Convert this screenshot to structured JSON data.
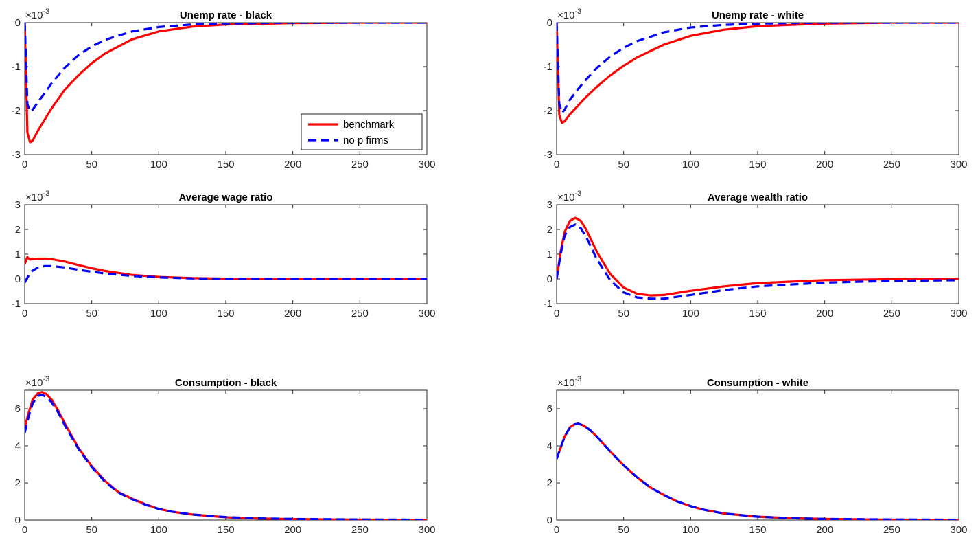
{
  "chart_data": [
    {
      "type": "line",
      "title": "Unemp rate - black",
      "exponent_base": "×10",
      "exponent_power": "-3",
      "xlim": [
        0,
        300
      ],
      "ylim": [
        -3,
        0
      ],
      "xticks": [
        0,
        50,
        100,
        150,
        200,
        250,
        300
      ],
      "yticks": [
        -3,
        -2,
        -1,
        0
      ],
      "legend": {
        "location": "bottom-right",
        "entries": [
          "benchmark",
          "no p firms"
        ]
      },
      "series": [
        {
          "name": "benchmark",
          "color": "#ff0000",
          "style": "solid",
          "x": [
            0,
            2,
            4,
            6,
            10,
            15,
            20,
            30,
            40,
            50,
            60,
            80,
            100,
            125,
            150,
            200,
            250,
            300
          ],
          "y": [
            0,
            -2.5,
            -2.72,
            -2.68,
            -2.45,
            -2.2,
            -1.95,
            -1.52,
            -1.2,
            -0.92,
            -0.7,
            -0.38,
            -0.2,
            -0.09,
            -0.04,
            -0.01,
            0,
            0
          ]
        },
        {
          "name": "no p firms",
          "color": "#0000ff",
          "style": "dashed",
          "x": [
            0,
            2,
            4,
            6,
            10,
            15,
            20,
            30,
            40,
            50,
            60,
            80,
            100,
            125,
            150,
            200,
            250,
            300
          ],
          "y": [
            0,
            -1.85,
            -2.02,
            -1.98,
            -1.8,
            -1.6,
            -1.38,
            -1.02,
            -0.74,
            -0.54,
            -0.39,
            -0.2,
            -0.1,
            -0.04,
            -0.02,
            0,
            0,
            0
          ]
        }
      ]
    },
    {
      "type": "line",
      "title": "Unemp rate - white",
      "exponent_base": "×10",
      "exponent_power": "-3",
      "xlim": [
        0,
        300
      ],
      "ylim": [
        -3,
        0
      ],
      "xticks": [
        0,
        50,
        100,
        150,
        200,
        250,
        300
      ],
      "yticks": [
        -3,
        -2,
        -1,
        0
      ],
      "series": [
        {
          "name": "benchmark",
          "color": "#ff0000",
          "style": "solid",
          "x": [
            0,
            2,
            4,
            6,
            10,
            15,
            20,
            30,
            40,
            50,
            60,
            80,
            100,
            125,
            150,
            200,
            250,
            300
          ],
          "y": [
            0,
            -2.1,
            -2.28,
            -2.24,
            -2.08,
            -1.92,
            -1.75,
            -1.46,
            -1.2,
            -0.98,
            -0.79,
            -0.5,
            -0.3,
            -0.16,
            -0.08,
            -0.02,
            0,
            0
          ]
        },
        {
          "name": "no p firms",
          "color": "#0000ff",
          "style": "dashed",
          "x": [
            0,
            2,
            4,
            6,
            10,
            15,
            20,
            30,
            40,
            50,
            60,
            80,
            100,
            125,
            150,
            200,
            250,
            300
          ],
          "y": [
            0,
            -1.85,
            -2.05,
            -1.98,
            -1.75,
            -1.55,
            -1.36,
            -1.03,
            -0.77,
            -0.57,
            -0.42,
            -0.22,
            -0.11,
            -0.05,
            -0.02,
            0,
            0,
            0
          ]
        }
      ]
    },
    {
      "type": "line",
      "title": "Average wage ratio",
      "exponent_base": "×10",
      "exponent_power": "-3",
      "xlim": [
        0,
        300
      ],
      "ylim": [
        -1,
        3
      ],
      "xticks": [
        0,
        50,
        100,
        150,
        200,
        250,
        300
      ],
      "yticks": [
        -1,
        0,
        1,
        2,
        3
      ],
      "series": [
        {
          "name": "benchmark",
          "color": "#ff0000",
          "style": "solid",
          "x": [
            0,
            2,
            4,
            6,
            8,
            10,
            15,
            20,
            30,
            40,
            50,
            60,
            80,
            100,
            125,
            150,
            200,
            250,
            300
          ],
          "y": [
            0.6,
            0.88,
            0.78,
            0.82,
            0.8,
            0.82,
            0.82,
            0.8,
            0.7,
            0.56,
            0.43,
            0.32,
            0.16,
            0.08,
            0.03,
            0.01,
            0,
            0,
            0
          ]
        },
        {
          "name": "no p firms",
          "color": "#0000ff",
          "style": "dashed",
          "x": [
            0,
            2,
            5,
            10,
            15,
            20,
            30,
            40,
            50,
            60,
            80,
            100,
            125,
            150,
            200,
            250,
            300
          ],
          "y": [
            -0.15,
            0.05,
            0.3,
            0.46,
            0.52,
            0.52,
            0.46,
            0.37,
            0.29,
            0.22,
            0.12,
            0.06,
            0.02,
            0.01,
            0,
            0,
            0
          ]
        }
      ]
    },
    {
      "type": "line",
      "title": "Average wealth ratio",
      "exponent_base": "×10",
      "exponent_power": "-3",
      "xlim": [
        0,
        300
      ],
      "ylim": [
        -1,
        3
      ],
      "xticks": [
        0,
        50,
        100,
        150,
        200,
        250,
        300
      ],
      "yticks": [
        -1,
        0,
        1,
        2,
        3
      ],
      "series": [
        {
          "name": "benchmark",
          "color": "#ff0000",
          "style": "solid",
          "x": [
            0,
            3,
            6,
            10,
            14,
            18,
            22,
            26,
            30,
            40,
            50,
            60,
            70,
            80,
            100,
            125,
            150,
            200,
            250,
            300
          ],
          "y": [
            0,
            1.1,
            1.9,
            2.35,
            2.47,
            2.35,
            2.0,
            1.55,
            1.1,
            0.2,
            -0.35,
            -0.6,
            -0.67,
            -0.65,
            -0.48,
            -0.3,
            -0.17,
            -0.05,
            -0.01,
            0
          ]
        },
        {
          "name": "no p firms",
          "color": "#0000ff",
          "style": "dashed",
          "x": [
            0,
            3,
            6,
            10,
            14,
            18,
            22,
            26,
            30,
            40,
            50,
            60,
            70,
            80,
            100,
            125,
            150,
            200,
            250,
            300
          ],
          "y": [
            0,
            1.0,
            1.75,
            2.1,
            2.2,
            2.05,
            1.7,
            1.25,
            0.8,
            -0.05,
            -0.55,
            -0.75,
            -0.8,
            -0.8,
            -0.65,
            -0.45,
            -0.3,
            -0.15,
            -0.08,
            -0.05
          ]
        }
      ]
    },
    {
      "type": "line",
      "title": "Consumption - black",
      "exponent_base": "×10",
      "exponent_power": "-3",
      "xlim": [
        0,
        300
      ],
      "ylim": [
        0,
        7
      ],
      "xticks": [
        0,
        50,
        100,
        150,
        200,
        250,
        300
      ],
      "yticks": [
        0,
        2,
        4,
        6
      ],
      "series": [
        {
          "name": "benchmark",
          "color": "#ff0000",
          "style": "solid",
          "x": [
            0,
            3,
            6,
            10,
            13,
            16,
            20,
            25,
            30,
            40,
            50,
            60,
            70,
            80,
            90,
            100,
            110,
            125,
            150,
            175,
            200,
            250,
            300
          ],
          "y": [
            5.0,
            5.8,
            6.5,
            6.85,
            6.9,
            6.8,
            6.5,
            5.9,
            5.2,
            3.9,
            2.9,
            2.1,
            1.5,
            1.15,
            0.85,
            0.6,
            0.45,
            0.3,
            0.15,
            0.08,
            0.05,
            0.02,
            0.01
          ]
        },
        {
          "name": "no p firms",
          "color": "#0000ff",
          "style": "dashed",
          "x": [
            0,
            3,
            6,
            10,
            13,
            16,
            20,
            25,
            30,
            40,
            50,
            60,
            70,
            80,
            90,
            100,
            110,
            125,
            150,
            175,
            200,
            250,
            300
          ],
          "y": [
            4.7,
            5.6,
            6.3,
            6.7,
            6.75,
            6.65,
            6.35,
            5.8,
            5.1,
            3.85,
            2.85,
            2.05,
            1.48,
            1.12,
            0.83,
            0.6,
            0.45,
            0.3,
            0.16,
            0.09,
            0.06,
            0.03,
            0.02
          ]
        }
      ]
    },
    {
      "type": "line",
      "title": "Consumption - white",
      "exponent_base": "×10",
      "exponent_power": "-3",
      "xlim": [
        0,
        300
      ],
      "ylim": [
        0,
        7
      ],
      "xticks": [
        0,
        50,
        100,
        150,
        200,
        250,
        300
      ],
      "yticks": [
        0,
        2,
        4,
        6
      ],
      "series": [
        {
          "name": "benchmark",
          "color": "#ff0000",
          "style": "solid",
          "x": [
            0,
            3,
            6,
            10,
            13,
            16,
            20,
            25,
            30,
            40,
            50,
            60,
            70,
            80,
            90,
            100,
            110,
            125,
            150,
            175,
            200,
            250,
            300
          ],
          "y": [
            3.3,
            3.9,
            4.5,
            5.0,
            5.15,
            5.2,
            5.1,
            4.85,
            4.5,
            3.7,
            2.95,
            2.3,
            1.75,
            1.35,
            1.0,
            0.75,
            0.55,
            0.35,
            0.18,
            0.1,
            0.06,
            0.02,
            0.01
          ]
        },
        {
          "name": "no p firms",
          "color": "#0000ff",
          "style": "dashed",
          "x": [
            0,
            3,
            6,
            10,
            13,
            16,
            20,
            25,
            30,
            40,
            50,
            60,
            70,
            80,
            90,
            100,
            110,
            125,
            150,
            175,
            200,
            250,
            300
          ],
          "y": [
            3.3,
            3.9,
            4.5,
            5.0,
            5.15,
            5.2,
            5.1,
            4.85,
            4.5,
            3.7,
            2.95,
            2.3,
            1.75,
            1.35,
            1.0,
            0.75,
            0.55,
            0.35,
            0.18,
            0.1,
            0.06,
            0.03,
            0.02
          ]
        }
      ]
    }
  ]
}
